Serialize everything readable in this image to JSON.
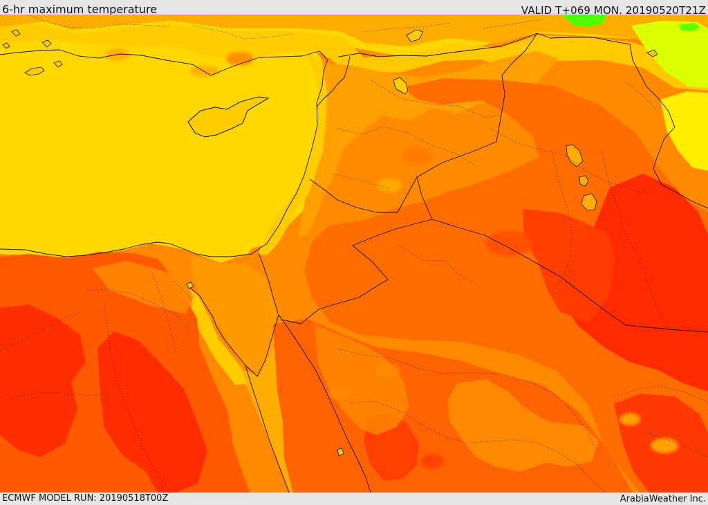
{
  "header": {
    "title": "6-hr maximum temperature",
    "valid": "VALID T+069 MON. 20190520T21Z"
  },
  "footer": {
    "model_run": "ECMWF MODEL RUN: 20190518T00Z",
    "credit": "ArabiaWeather Inc."
  },
  "colors": {
    "sea_yellow": "#ffd800",
    "warm_yellow": "#ffcc00",
    "light_orange": "#ffad00",
    "orange": "#ff8a00",
    "orange_red": "#ff5a00",
    "red": "#ff2a00",
    "green": "#50ff00",
    "lime": "#d9ff00",
    "border_black": "#111111"
  }
}
